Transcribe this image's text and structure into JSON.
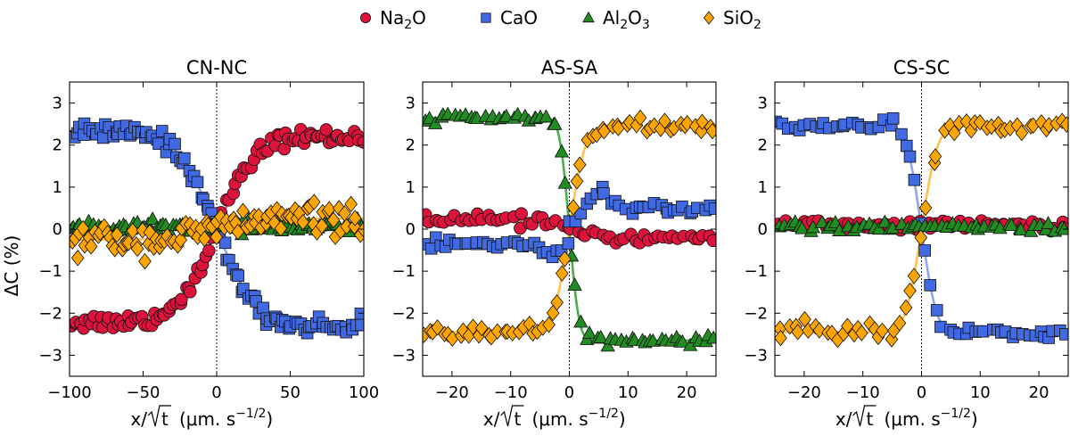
{
  "colors": {
    "Na2O": "#dc143c",
    "CaO": "#4169e1",
    "Al2O3": "#228b22",
    "SiO2": "#ffa500",
    "Na2O_fit": "#d9495e",
    "CaO_fit": "#7b97e6",
    "Al2O3_fit": "#2ca02c",
    "SiO2_fit": "#ffb733"
  },
  "legend": {
    "items": [
      {
        "key": "Na2O",
        "text": "Na",
        "sub": "2",
        "tail": "O",
        "marker": "circle"
      },
      {
        "key": "CaO",
        "text": "CaO",
        "sub": "",
        "tail": "",
        "marker": "square"
      },
      {
        "key": "Al2O3",
        "text": "Al",
        "sub": "2",
        "tail": "O",
        "sub2": "3",
        "marker": "triangle"
      },
      {
        "key": "SiO2",
        "text": "SiO",
        "sub": "2",
        "tail": "",
        "marker": "diamond"
      }
    ]
  },
  "labels": {
    "ylabel": "ΔC (%)",
    "xlabel_main": "x/",
    "xlabel_t": "t",
    "xlabel_units": "(μm. s",
    "xlabel_exp": "−1/2",
    "xlabel_close": ")"
  },
  "chart_data": [
    {
      "type": "scatter",
      "title": "CN-NC",
      "xlim": [
        -100,
        100
      ],
      "ylim": [
        -3.5,
        3.5
      ],
      "xticks": [
        -100,
        -50,
        0,
        50,
        100
      ],
      "yticks": [
        -3,
        -2,
        -1,
        0,
        1,
        2,
        3
      ],
      "vline": 0,
      "series": [
        {
          "name": "Na2O",
          "profile": "erf",
          "offset": 0.0,
          "amp": 2.2,
          "width": 30,
          "noise": 0.1,
          "n": 100
        },
        {
          "name": "CaO",
          "profile": "erf",
          "offset": 0.0,
          "amp": -2.3,
          "width": 30,
          "noise": 0.1,
          "n": 100
        },
        {
          "name": "Al2O3",
          "profile": "flat",
          "offset": 0.05,
          "amp": 0.0,
          "width": 30,
          "noise": 0.07,
          "n": 100
        },
        {
          "name": "SiO2",
          "profile": "erf",
          "offset": 0.0,
          "amp": 0.25,
          "width": 30,
          "noise": 0.18,
          "n": 100
        }
      ]
    },
    {
      "type": "scatter",
      "title": "AS-SA",
      "xlim": [
        -25,
        25
      ],
      "ylim": [
        -3.5,
        3.5
      ],
      "xticks": [
        -20,
        -10,
        0,
        10,
        20
      ],
      "yticks": [
        -3,
        -2,
        -1,
        0,
        1,
        2,
        3
      ],
      "vline": 0,
      "series": [
        {
          "name": "Na2O",
          "profile": "erf",
          "offset": 0.0,
          "amp": -0.2,
          "width": 2.5,
          "noise": 0.07,
          "n": 60
        },
        {
          "name": "CaO",
          "profile": "peak",
          "offset": 0.0,
          "amp": 0.4,
          "width": 2.5,
          "noise": 0.08,
          "n": 60
        },
        {
          "name": "Al2O3",
          "profile": "erf",
          "offset": 0.0,
          "amp": -2.65,
          "width": 1.8,
          "noise": 0.05,
          "n": 60
        },
        {
          "name": "SiO2",
          "profile": "erf",
          "offset": 0.0,
          "amp": 2.45,
          "width": 3.0,
          "noise": 0.08,
          "n": 60
        }
      ]
    },
    {
      "type": "scatter",
      "title": "CS-SC",
      "xlim": [
        -25,
        25
      ],
      "ylim": [
        -3.5,
        3.5
      ],
      "xticks": [
        -20,
        -10,
        0,
        10,
        20
      ],
      "yticks": [
        -3,
        -2,
        -1,
        0,
        1,
        2,
        3
      ],
      "vline": 0,
      "series": [
        {
          "name": "Na2O",
          "profile": "flat",
          "offset": 0.1,
          "amp": 0.0,
          "width": 2.5,
          "noise": 0.06,
          "n": 55
        },
        {
          "name": "CaO",
          "profile": "erf",
          "offset": 0.0,
          "amp": -2.45,
          "width": 2.8,
          "noise": 0.07,
          "n": 55
        },
        {
          "name": "Al2O3",
          "profile": "flat",
          "offset": 0.05,
          "amp": 0.0,
          "width": 2.5,
          "noise": 0.05,
          "n": 55
        },
        {
          "name": "SiO2",
          "profile": "erf",
          "offset": 0.0,
          "amp": 2.45,
          "width": 3.0,
          "noise": 0.12,
          "n": 55
        }
      ]
    }
  ]
}
